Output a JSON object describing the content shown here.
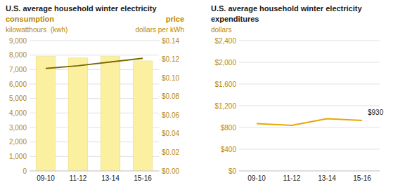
{
  "chart_data": [
    {
      "type": "bar",
      "title": "U.S. average household winter electricity",
      "ylabel": "kilowatthours  (kwh)",
      "y2label": "dollars per kWh",
      "categories": [
        "09-10",
        "11-12",
        "13-14",
        "15-16"
      ],
      "series": [
        {
          "name": "consumption",
          "type": "bar",
          "color": "#FAF0A0",
          "values": [
            7900,
            7800,
            7900,
            7600
          ]
        },
        {
          "name": "price",
          "type": "line",
          "axis": "y2",
          "color": "#7A6A00",
          "values": [
            0.11,
            0.113,
            0.117,
            0.121
          ]
        }
      ],
      "ylim": [
        0,
        9000
      ],
      "yticks": [
        0,
        {
          "value": 1000,
          "label": "1,000"
        },
        {
          "value": 2000,
          "label": "2,000"
        },
        {
          "value": 3000,
          "label": "3,000"
        },
        {
          "value": 4000,
          "label": "4,000"
        },
        {
          "value": 5000,
          "label": "5,000"
        },
        {
          "value": 6000,
          "label": "6,000"
        },
        {
          "value": 7000,
          "label": "7,000"
        },
        {
          "value": 8000,
          "label": "8,000"
        },
        {
          "value": 9000,
          "label": "9,000"
        }
      ],
      "y2lim": [
        0,
        0.14
      ],
      "y2ticks": [
        {
          "value": 0.0,
          "label": "$0.00"
        },
        {
          "value": 0.02,
          "label": "$0.02"
        },
        {
          "value": 0.04,
          "label": "$0.04"
        },
        {
          "value": 0.06,
          "label": "$0.06"
        },
        {
          "value": 0.08,
          "label": "$0.08"
        },
        {
          "value": 0.1,
          "label": "$0.10"
        },
        {
          "value": 0.12,
          "label": "$0.12"
        },
        {
          "value": 0.14,
          "label": "$0.14"
        }
      ],
      "grid": true
    },
    {
      "type": "line",
      "title": "U.S. average household winter electricity",
      "subtitle": "expenditures",
      "ylabel": "dollars",
      "categories": [
        "09-10",
        "11-12",
        "13-14",
        "15-16"
      ],
      "values": [
        870,
        840,
        960,
        930
      ],
      "color": "#E8A800",
      "ylim": [
        0,
        2400
      ],
      "yticks": [
        {
          "value": 0,
          "label": "$0"
        },
        {
          "value": 400,
          "label": "$400"
        },
        {
          "value": 800,
          "label": "$800"
        },
        {
          "value": 1200,
          "label": "$1,200"
        },
        {
          "value": 1600,
          "label": "$1,600"
        },
        {
          "value": 2000,
          "label": "$2,000"
        },
        {
          "value": 2400,
          "label": "$2,400"
        }
      ],
      "grid": true,
      "annotations": [
        {
          "text": "$930",
          "x": "15-16",
          "y": 930
        }
      ]
    }
  ]
}
